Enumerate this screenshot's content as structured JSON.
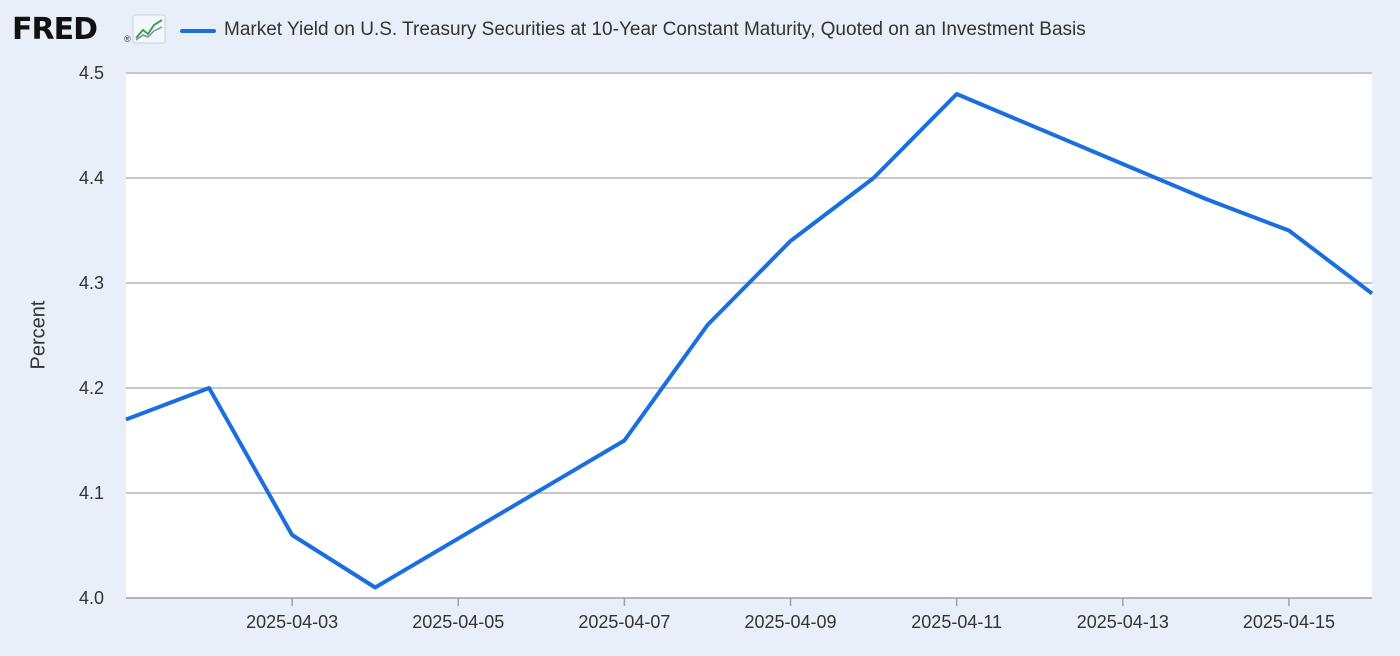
{
  "header": {
    "logo_text": "FRED",
    "logo_registered": "®",
    "logo_icon": "line-graph-icon"
  },
  "colors": {
    "series": "#1a6fe0",
    "background": "#e8eff8",
    "plot_background": "#ffffff",
    "gridline": "#c8c8c8",
    "text": "#333333"
  },
  "chart_data": {
    "type": "line",
    "title": "",
    "xlabel": "",
    "ylabel": "Percent",
    "ylim": [
      4.0,
      4.5
    ],
    "xlim": [
      "2025-04-01",
      "2025-04-16"
    ],
    "grid": true,
    "legend": "top-left",
    "yticks": [
      "4.0",
      "4.1",
      "4.2",
      "4.3",
      "4.4",
      "4.5"
    ],
    "xticks": [
      "2025-04-03",
      "2025-04-05",
      "2025-04-07",
      "2025-04-09",
      "2025-04-11",
      "2025-04-13",
      "2025-04-15"
    ],
    "series": [
      {
        "name": "Market Yield on U.S. Treasury Securities at 10-Year Constant Maturity, Quoted on an Investment Basis",
        "x": [
          "2025-04-01",
          "2025-04-02",
          "2025-04-03",
          "2025-04-04",
          "2025-04-07",
          "2025-04-08",
          "2025-04-09",
          "2025-04-10",
          "2025-04-11",
          "2025-04-14",
          "2025-04-15",
          "2025-04-16"
        ],
        "values": [
          4.17,
          4.2,
          4.06,
          4.01,
          4.15,
          4.26,
          4.34,
          4.4,
          4.48,
          4.38,
          4.35,
          4.29
        ]
      }
    ]
  }
}
